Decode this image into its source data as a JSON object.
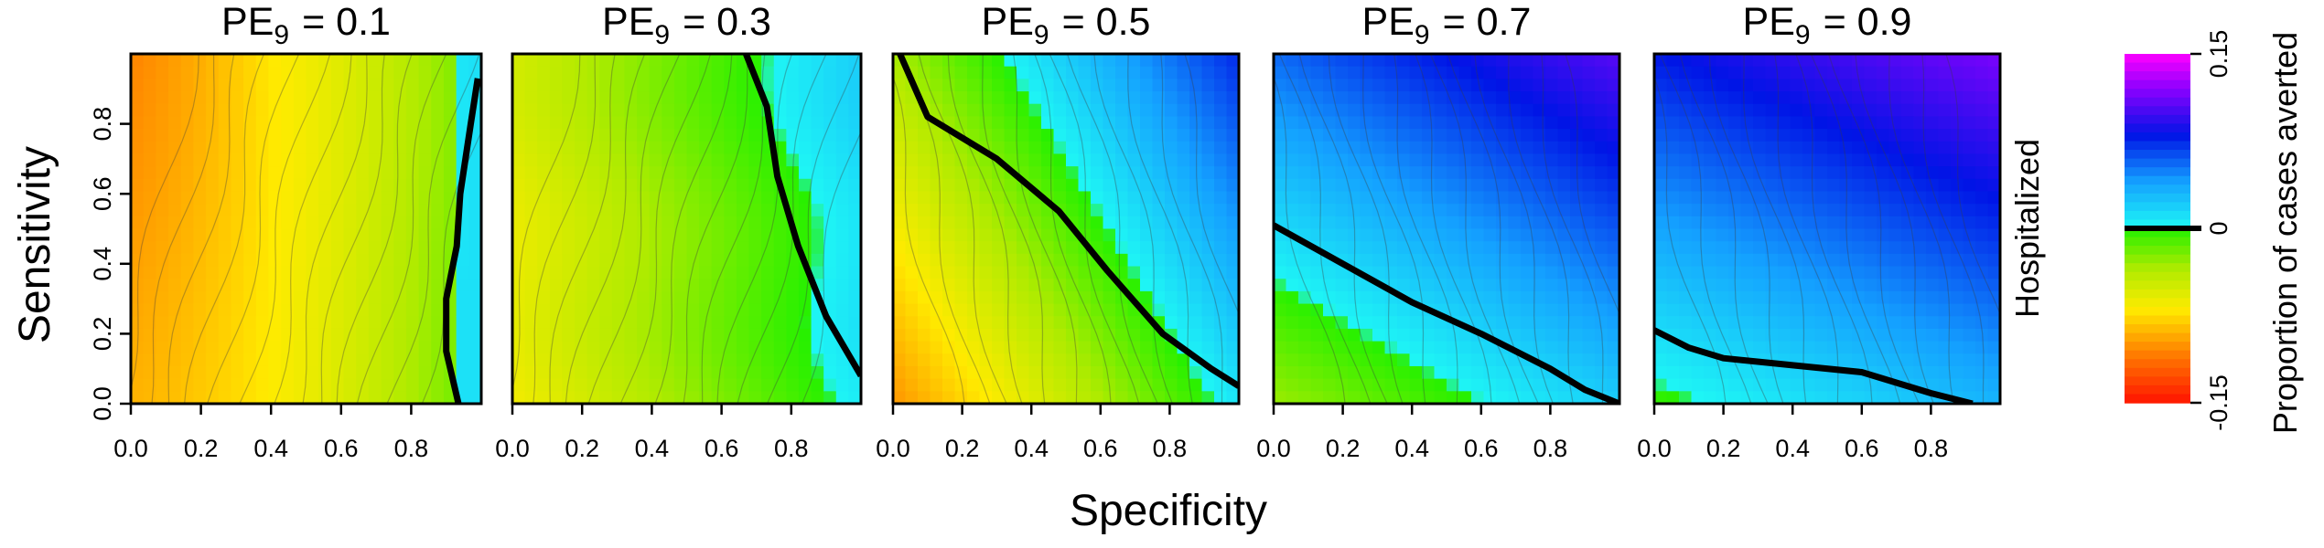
{
  "chart_data": {
    "type": "heatmap",
    "xlabel": "Specificity",
    "ylabel": "Sensitivity",
    "row_label": "Hospitalized",
    "xlim": [
      0,
      1
    ],
    "ylim": [
      0,
      1
    ],
    "x_ticks": [
      "0.0",
      "0.2",
      "0.4",
      "0.6",
      "0.8"
    ],
    "y_ticks": [
      "0.0",
      "0.2",
      "0.4",
      "0.6",
      "0.8"
    ],
    "panels": [
      {
        "title_prefix": "PE",
        "title_sub": "9",
        "title_value": "=  0.1",
        "pe": 0.1,
        "zero_contour": [
          [
            0.935,
            0.0
          ],
          [
            0.9,
            0.15
          ],
          [
            0.9,
            0.3
          ],
          [
            0.93,
            0.45
          ],
          [
            0.94,
            0.6
          ],
          [
            0.97,
            0.8
          ],
          [
            0.99,
            0.93
          ]
        ]
      },
      {
        "title_prefix": "PE",
        "title_sub": "9",
        "title_value": "=  0.3",
        "pe": 0.3,
        "zero_contour": [
          [
            1.0,
            0.08
          ],
          [
            0.9,
            0.25
          ],
          [
            0.82,
            0.45
          ],
          [
            0.76,
            0.65
          ],
          [
            0.73,
            0.85
          ],
          [
            0.67,
            1.0
          ]
        ]
      },
      {
        "title_prefix": "PE",
        "title_sub": "9",
        "title_value": "=  0.5",
        "pe": 0.5,
        "zero_contour": [
          [
            0.02,
            1.0
          ],
          [
            0.1,
            0.82
          ],
          [
            0.3,
            0.7
          ],
          [
            0.48,
            0.55
          ],
          [
            0.62,
            0.38
          ],
          [
            0.78,
            0.2
          ],
          [
            0.92,
            0.1
          ],
          [
            1.0,
            0.05
          ]
        ]
      },
      {
        "title_prefix": "PE",
        "title_sub": "9",
        "title_value": "=  0.7",
        "pe": 0.7,
        "zero_contour": [
          [
            0.0,
            0.51
          ],
          [
            0.2,
            0.4
          ],
          [
            0.4,
            0.29
          ],
          [
            0.6,
            0.2
          ],
          [
            0.8,
            0.1
          ],
          [
            0.9,
            0.04
          ],
          [
            1.0,
            0.0
          ]
        ]
      },
      {
        "title_prefix": "PE",
        "title_sub": "9",
        "title_value": "=  0.9",
        "pe": 0.9,
        "zero_contour": [
          [
            0.0,
            0.21
          ],
          [
            0.1,
            0.16
          ],
          [
            0.2,
            0.13
          ],
          [
            0.4,
            0.11
          ],
          [
            0.6,
            0.09
          ],
          [
            0.8,
            0.03
          ],
          [
            0.92,
            0.0
          ]
        ]
      }
    ],
    "colorbar": {
      "label": "Proportion of cases averted",
      "min": -0.15,
      "max": 0.15,
      "ticks": [
        "-0.15",
        "0",
        "0.15"
      ]
    }
  }
}
